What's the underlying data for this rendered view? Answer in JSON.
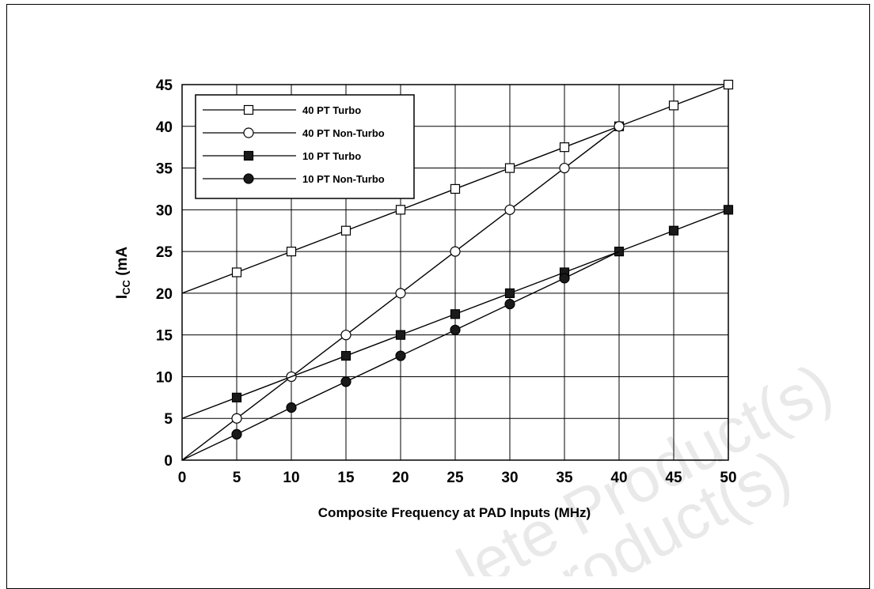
{
  "chart_data": {
    "type": "line",
    "title": "",
    "xlabel": "Composite Frequency at PAD Inputs (MHz)",
    "ylabel": "ICC (mA",
    "ylabel_main": "I",
    "ylabel_sub": "CC",
    "ylabel_rest": " (mA",
    "xlim": [
      0,
      50
    ],
    "ylim": [
      0,
      45
    ],
    "x_ticks": [
      0,
      5,
      10,
      15,
      20,
      25,
      30,
      35,
      40,
      45,
      50
    ],
    "y_ticks": [
      0,
      5,
      10,
      15,
      20,
      25,
      30,
      35,
      40,
      45
    ],
    "grid": true,
    "legend_position": "top-left",
    "series": [
      {
        "name": "40 PT Turbo",
        "marker": "square-open",
        "x": [
          0,
          5,
          10,
          15,
          20,
          25,
          30,
          35,
          40,
          45,
          50
        ],
        "y": [
          20,
          22.5,
          25,
          27.5,
          30,
          32.5,
          35,
          37.5,
          40,
          42.5,
          45
        ],
        "markers": [
          5,
          10,
          15,
          20,
          25,
          30,
          35,
          40,
          45,
          50
        ]
      },
      {
        "name": "40 PT Non-Turbo",
        "marker": "circle-open",
        "x": [
          0,
          5,
          10,
          15,
          20,
          25,
          30,
          35,
          40
        ],
        "y": [
          0,
          5,
          10,
          15,
          20,
          25,
          30,
          35,
          40
        ],
        "markers": [
          5,
          10,
          15,
          20,
          25,
          30,
          35,
          40
        ]
      },
      {
        "name": "10 PT Turbo",
        "marker": "square-filled",
        "x": [
          0,
          5,
          10,
          15,
          20,
          25,
          30,
          35,
          40,
          45,
          50
        ],
        "y": [
          5,
          7.5,
          10,
          12.5,
          15,
          17.5,
          20,
          22.5,
          25,
          27.5,
          30
        ],
        "markers": [
          5,
          15,
          20,
          25,
          30,
          35,
          40,
          45,
          50
        ]
      },
      {
        "name": "10 PT Non-Turbo",
        "marker": "circle-filled",
        "x": [
          0,
          5,
          10,
          15,
          20,
          25,
          30,
          35,
          40
        ],
        "y": [
          0,
          3.1,
          6.3,
          9.4,
          12.5,
          15.6,
          18.7,
          21.8,
          25
        ],
        "markers": [
          5,
          10,
          15,
          20,
          25,
          30,
          35
        ]
      }
    ]
  }
}
